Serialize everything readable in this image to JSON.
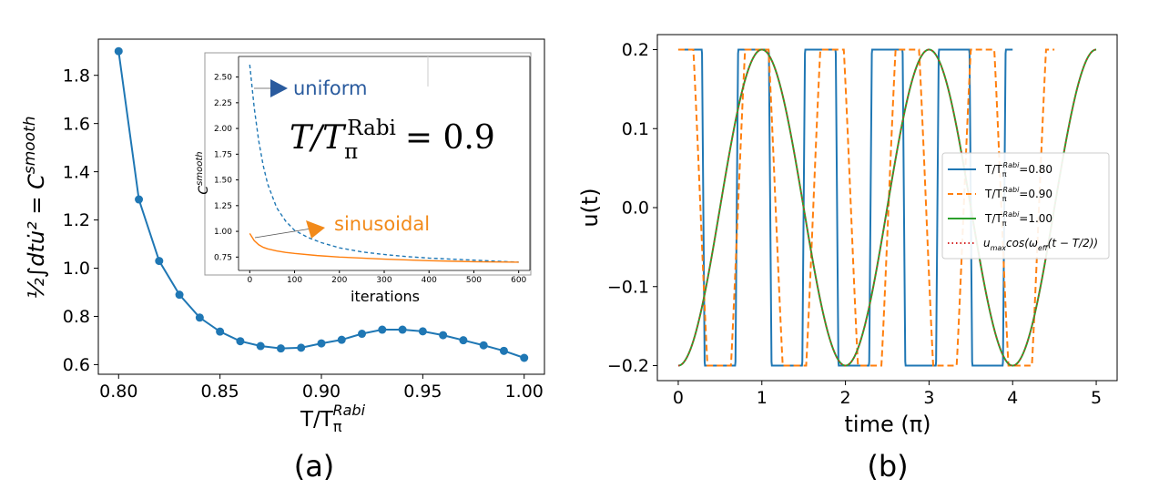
{
  "panel_labels": {
    "a": "(a)",
    "b": "(b)"
  },
  "chart_data": [
    {
      "type": "line",
      "panel": "(a)",
      "xlabel": "T/T",
      "xlabel_sub": "π",
      "xlabel_sup": "Rabi",
      "ylabel": "½∫dtu̇² = C",
      "ylabel_sup": "smooth",
      "xlim": [
        0.79,
        1.01
      ],
      "ylim": [
        0.56,
        1.95
      ],
      "xticks": [
        0.8,
        0.85,
        0.9,
        0.95,
        1.0
      ],
      "xtick_labels": [
        "0.80",
        "0.85",
        "0.90",
        "0.95",
        "1.00"
      ],
      "yticks": [
        0.6,
        0.8,
        1.0,
        1.2,
        1.4,
        1.6,
        1.8
      ],
      "ytick_labels": [
        "0.6",
        "0.8",
        "1.0",
        "1.2",
        "1.4",
        "1.6",
        "1.8"
      ],
      "color": "#1f77b4",
      "x": [
        0.8,
        0.81,
        0.82,
        0.83,
        0.84,
        0.85,
        0.86,
        0.87,
        0.88,
        0.89,
        0.9,
        0.91,
        0.92,
        0.93,
        0.94,
        0.95,
        0.96,
        0.97,
        0.98,
        0.99,
        1.0
      ],
      "y": [
        1.9,
        1.285,
        1.03,
        0.89,
        0.795,
        0.737,
        0.697,
        0.677,
        0.667,
        0.67,
        0.688,
        0.703,
        0.728,
        0.745,
        0.745,
        0.738,
        0.722,
        0.701,
        0.68,
        0.657,
        0.628
      ]
    },
    {
      "type": "line",
      "panel": "(a) inset",
      "xlabel": "iterations",
      "ylabel": "C",
      "ylabel_sup": "smooth",
      "annotation_uniform": "uniform",
      "annotation_sinusoidal": "sinusoidal",
      "annotation_ratio": "T/T",
      "annotation_ratio_sub": "π",
      "annotation_ratio_sup": "Rabi",
      "annotation_ratio_value": "= 0.9",
      "xlim": [
        -25,
        625
      ],
      "ylim": [
        0.62,
        2.7
      ],
      "xticks": [
        0,
        100,
        200,
        300,
        400,
        500,
        600
      ],
      "xtick_labels": [
        "0",
        "100",
        "200",
        "300",
        "400",
        "500",
        "600"
      ],
      "yticks": [
        0.75,
        1.0,
        1.25,
        1.5,
        1.75,
        2.0,
        2.25,
        2.5
      ],
      "ytick_labels": [
        "0.75",
        "1.00",
        "1.25",
        "1.50",
        "1.75",
        "2.00",
        "2.25",
        "2.50"
      ],
      "series": [
        {
          "name": "uniform",
          "color": "#1f77b4",
          "style": "dashed",
          "x": [
            0,
            10,
            20,
            30,
            40,
            60,
            80,
            100,
            130,
            160,
            200,
            250,
            300,
            350,
            400,
            450,
            500,
            550,
            600
          ],
          "y": [
            2.62,
            2.2,
            1.88,
            1.64,
            1.46,
            1.23,
            1.1,
            1.01,
            0.94,
            0.89,
            0.84,
            0.8,
            0.775,
            0.755,
            0.74,
            0.73,
            0.72,
            0.71,
            0.7
          ]
        },
        {
          "name": "sinusoidal",
          "color": "#ff7f0e",
          "style": "solid",
          "x": [
            0,
            10,
            20,
            30,
            40,
            60,
            80,
            100,
            150,
            200,
            250,
            300,
            400,
            500,
            600
          ],
          "y": [
            0.98,
            0.91,
            0.87,
            0.845,
            0.83,
            0.81,
            0.795,
            0.785,
            0.765,
            0.75,
            0.74,
            0.73,
            0.715,
            0.705,
            0.7
          ]
        }
      ]
    },
    {
      "type": "line",
      "panel": "(b)",
      "xlabel": "time (π)",
      "ylabel": "u(t)",
      "xlim": [
        -0.25,
        5.25
      ],
      "ylim": [
        -0.219,
        0.219
      ],
      "xticks": [
        0,
        1,
        2,
        3,
        4,
        5
      ],
      "xtick_labels": [
        "0",
        "1",
        "2",
        "3",
        "4",
        "5"
      ],
      "yticks": [
        -0.2,
        -0.1,
        0.0,
        0.1,
        0.2
      ],
      "ytick_labels": [
        "−0.2",
        "−0.1",
        "0.0",
        "0.1",
        "0.2"
      ],
      "amplitude": 0.2,
      "legend_position": "center-right",
      "series": [
        {
          "name": "T/T",
          "name_sub": "π",
          "name_sup": "Rabi",
          "name_value": "=0.80",
          "color": "#1f77b4",
          "style": "solid",
          "shape": "bang-bang",
          "duration": 4.0,
          "period": 0.8,
          "phase": 0.1,
          "edge": 0.05
        },
        {
          "name": "T/T",
          "name_sub": "π",
          "name_sup": "Rabi",
          "name_value": "=0.90",
          "color": "#ff7f0e",
          "style": "dashed",
          "shape": "clipped-sine",
          "duration": 4.5,
          "period": 0.9,
          "phase": -0.185,
          "gain": 1.8
        },
        {
          "name": "T/T",
          "name_sub": "π",
          "name_sup": "Rabi",
          "name_value": "=1.00",
          "color": "#2ca02c",
          "style": "solid",
          "shape": "sine",
          "duration": 5.0,
          "period": 1.0,
          "phase": 0.5
        },
        {
          "name": "u",
          "name_sub": "max",
          "name_value": "cos(ω",
          "name_value_sub": "eff",
          "name_value_tail": "(t − T/2))",
          "color": "#d62728",
          "style": "dotted",
          "shape": "sine",
          "duration": 5.0,
          "period": 1.0,
          "phase": 0.5
        }
      ]
    }
  ]
}
